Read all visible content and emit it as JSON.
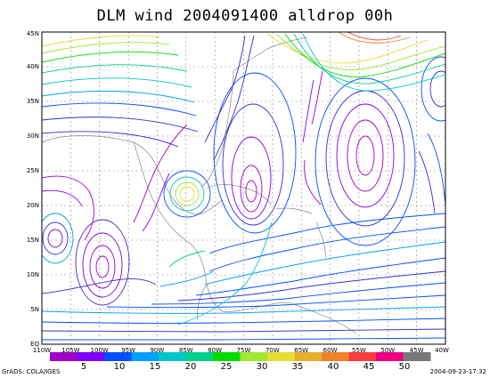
{
  "title": "DLM wind 2004091400 alldrop 00h",
  "x_ticks": [
    "110W",
    "105W",
    "100W",
    "95W",
    "90W",
    "85W",
    "80W",
    "75W",
    "70W",
    "65W",
    "60W",
    "55W",
    "50W",
    "45W",
    "40W"
  ],
  "y_ticks": [
    "EQ",
    "5N",
    "10N",
    "15N",
    "20N",
    "25N",
    "30N",
    "35N",
    "40N",
    "45N"
  ],
  "colorbar": {
    "colors": [
      "#a000c8",
      "#8000ff",
      "#0050ff",
      "#00a0ff",
      "#00c8c8",
      "#00d28c",
      "#00dc00",
      "#a0e632",
      "#e6dc32",
      "#e6af2d",
      "#f08228",
      "#fa3c3c",
      "#f00082",
      "#787878"
    ],
    "labels": [
      "5",
      "10",
      "15",
      "20",
      "25",
      "30",
      "35",
      "40",
      "45",
      "50"
    ]
  },
  "footer_left": "GrADS: COLA/IGES",
  "footer_right": "2004-09-23-17:32"
}
